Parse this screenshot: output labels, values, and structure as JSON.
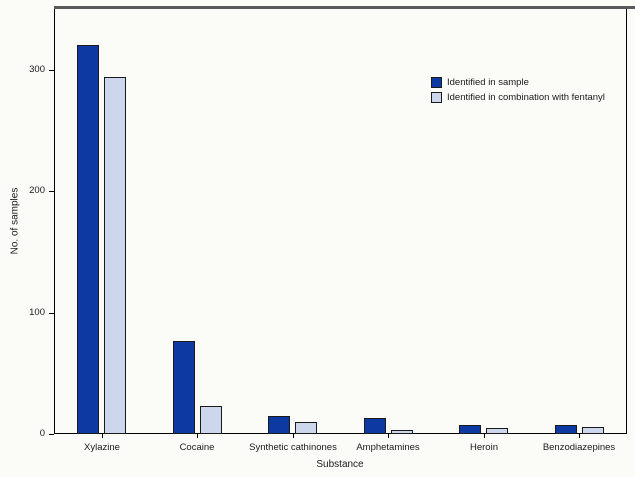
{
  "figure": {
    "background_color": "#fbfcf8",
    "top_rule_color": "#58595b",
    "frame_color": "#000000"
  },
  "chart_data": {
    "type": "bar",
    "title": "",
    "xlabel": "Substance",
    "ylabel": "No. of samples",
    "categories": [
      "Xylazine",
      "Cocaine",
      "Synthetic cathinones",
      "Amphetamines",
      "Heroin",
      "Benzodiazepines"
    ],
    "series": [
      {
        "name": "Identified in sample",
        "color": "#0d39a3",
        "values": [
          320,
          77,
          15,
          13,
          7,
          7
        ]
      },
      {
        "name": "Identified in combination with fentanyl",
        "color": "#ccd6ec",
        "values": [
          294,
          23,
          10,
          3,
          5,
          6
        ]
      }
    ],
    "ylim": [
      0,
      350
    ],
    "yticks": [
      0,
      100,
      200,
      300
    ],
    "grid": false,
    "legend_position": "upper right",
    "bar_border_color": "#1a1a1a"
  }
}
